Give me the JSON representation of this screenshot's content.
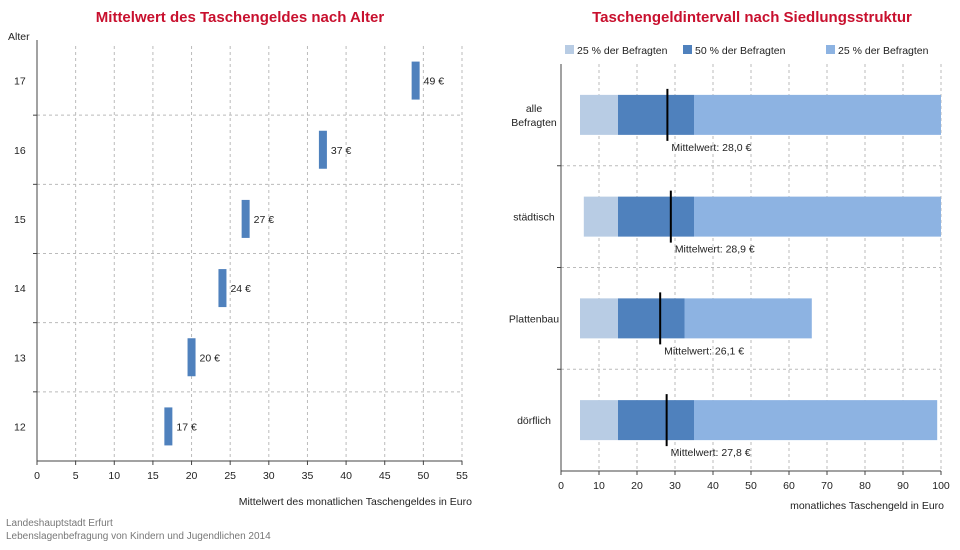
{
  "chart_data": [
    {
      "type": "bar",
      "title": "Mittelwert des Taschengeldes nach Alter",
      "ylabel": "Alter",
      "xlabel": "Mittelwert des monatlichen Taschengeldes in Euro",
      "categories": [
        "17",
        "16",
        "15",
        "14",
        "13",
        "12"
      ],
      "values": [
        49,
        37,
        27,
        24,
        20,
        17
      ],
      "value_labels": [
        "49 €",
        "37 €",
        "27 €",
        "24 €",
        "20 €",
        "17 €"
      ],
      "x_ticks": [
        "0",
        "5",
        "10",
        "15",
        "20",
        "25",
        "30",
        "35",
        "40",
        "45",
        "50",
        "55"
      ],
      "xlim": [
        0,
        55
      ],
      "grid": true,
      "color": "#4f81bd"
    },
    {
      "type": "bar",
      "title": "Taschengeldintervall nach Siedlungsstruktur",
      "xlabel": "monatliches Taschengeld in Euro",
      "legend_position": "top",
      "legend": [
        "25 % der Befragten",
        "50 % der Befragten",
        "25 % der Befragten"
      ],
      "categories": [
        "alle\nBefragten",
        "städtisch",
        "Plattenbau",
        "dörflich"
      ],
      "series": [
        {
          "name": "25 % der Befragten",
          "color": "#b8cce4",
          "ranges": [
            [
              5,
              15
            ],
            [
              6,
              15
            ],
            [
              5,
              15
            ],
            [
              5,
              15
            ]
          ]
        },
        {
          "name": "50 % der Befragten",
          "color": "#4f81bd",
          "ranges": [
            [
              15,
              35
            ],
            [
              15,
              35
            ],
            [
              15,
              32.5
            ],
            [
              15,
              35
            ]
          ]
        },
        {
          "name": "25 % der Befragten",
          "color": "#8db3e2",
          "ranges": [
            [
              35,
              100
            ],
            [
              35,
              100
            ],
            [
              32.5,
              66
            ],
            [
              35,
              99
            ]
          ]
        }
      ],
      "means": [
        28.0,
        28.9,
        26.1,
        27.8
      ],
      "mean_labels": [
        "Mittelwert: 28,0 €",
        "Mittelwert: 28,9 €",
        "Mittelwert: 26,1 €",
        "Mittelwert: 27,8 €"
      ],
      "x_ticks": [
        "0",
        "10",
        "20",
        "30",
        "40",
        "50",
        "60",
        "70",
        "80",
        "90",
        "100"
      ],
      "xlim": [
        0,
        100
      ],
      "grid": true
    }
  ],
  "source": {
    "line1": "Landeshauptstadt Erfurt",
    "line2": "Lebenslagenbefragung von Kindern und Jugendlichen 2014"
  }
}
